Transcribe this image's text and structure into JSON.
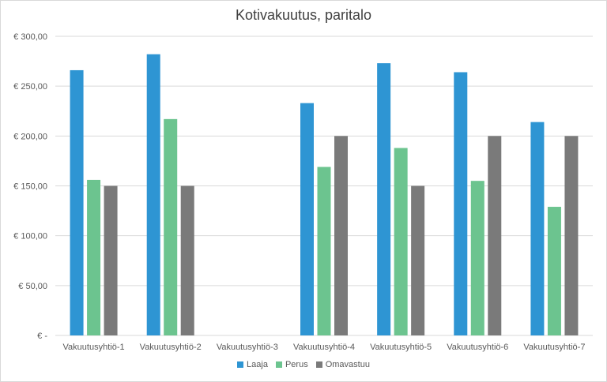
{
  "chart_data": {
    "type": "bar",
    "title": "Kotivakuutus, paritalo",
    "xlabel": "",
    "ylabel": "",
    "ylim": [
      0,
      300
    ],
    "y_ticks": [
      {
        "value": 0,
        "label": "€ -"
      },
      {
        "value": 50,
        "label": "€ 50,00"
      },
      {
        "value": 100,
        "label": "€ 100,00"
      },
      {
        "value": 150,
        "label": "€ 150,00"
      },
      {
        "value": 200,
        "label": "€ 200,00"
      },
      {
        "value": 250,
        "label": "€ 250,00"
      },
      {
        "value": 300,
        "label": "€ 300,00"
      }
    ],
    "grid": true,
    "legend_position": "bottom",
    "categories": [
      "Vakuutusyhtiö-1",
      "Vakuutusyhtiö-2",
      "Vakuutusyhtiö-3",
      "Vakuutusyhtiö-4",
      "Vakuutusyhtiö-5",
      "Vakuutusyhtiö-6",
      "Vakuutusyhtiö-7"
    ],
    "series": [
      {
        "name": "Laaja",
        "color": "#2e95d3",
        "values": [
          266,
          282,
          null,
          233,
          273,
          264,
          214
        ]
      },
      {
        "name": "Perus",
        "color": "#6cc48f",
        "values": [
          156,
          217,
          null,
          169,
          188,
          155,
          129
        ]
      },
      {
        "name": "Omavastuu",
        "color": "#7a7a7a",
        "values": [
          150,
          150,
          null,
          200,
          150,
          200,
          200
        ]
      }
    ]
  }
}
